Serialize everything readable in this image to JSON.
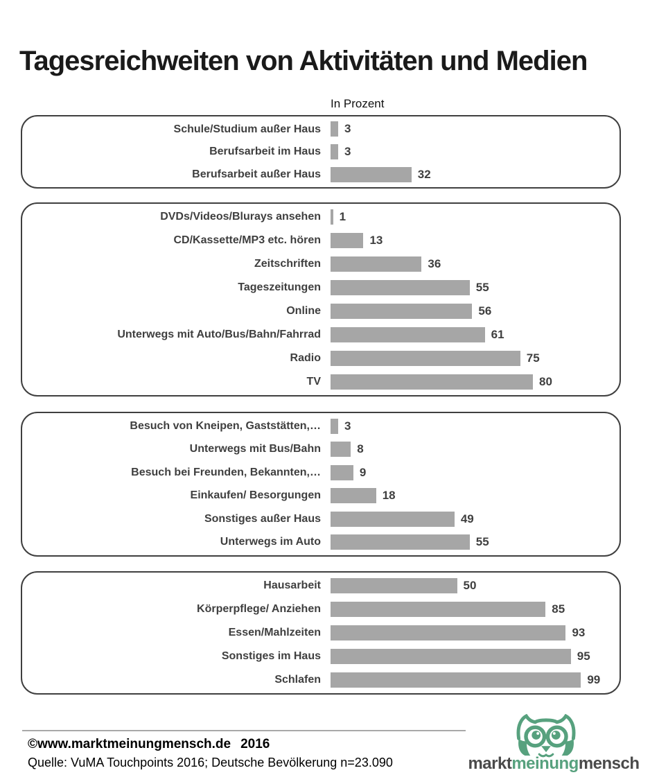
{
  "page": {
    "title": "Tagesreichweiten von Aktivitäten und Medien",
    "unit_label": "In Prozent"
  },
  "chart_data": {
    "type": "bar",
    "orientation": "horizontal",
    "title": "Tagesreichweiten von Aktivitäten und Medien",
    "value_unit": "Prozent",
    "xlim": [
      0,
      100
    ],
    "grid": false,
    "legend": false,
    "bar_color": "#A6A6A6",
    "groups": [
      {
        "items": [
          {
            "label": "Schule/Studium außer Haus",
            "value": 3
          },
          {
            "label": "Berufsarbeit im Haus",
            "value": 3
          },
          {
            "label": "Berufsarbeit außer Haus",
            "value": 32
          }
        ]
      },
      {
        "items": [
          {
            "label": "DVDs/Videos/Blurays ansehen",
            "value": 1
          },
          {
            "label": "CD/Kassette/MP3 etc. hören",
            "value": 13
          },
          {
            "label": "Zeitschriften",
            "value": 36
          },
          {
            "label": "Tageszeitungen",
            "value": 55
          },
          {
            "label": "Online",
            "value": 56
          },
          {
            "label": "Unterwegs mit Auto/Bus/Bahn/Fahrrad",
            "value": 61
          },
          {
            "label": "Radio",
            "value": 75
          },
          {
            "label": "TV",
            "value": 80
          }
        ]
      },
      {
        "items": [
          {
            "label": "Besuch von Kneipen, Gaststätten,…",
            "value": 3
          },
          {
            "label": "Unterwegs mit Bus/Bahn",
            "value": 8
          },
          {
            "label": "Besuch bei Freunden, Bekannten,…",
            "value": 9
          },
          {
            "label": "Einkaufen/ Besorgungen",
            "value": 18
          },
          {
            "label": "Sonstiges außer Haus",
            "value": 49
          },
          {
            "label": "Unterwegs im Auto",
            "value": 55
          }
        ]
      },
      {
        "items": [
          {
            "label": "Hausarbeit",
            "value": 50
          },
          {
            "label": "Körperpflege/ Anziehen",
            "value": 85
          },
          {
            "label": "Essen/Mahlzeiten",
            "value": 93
          },
          {
            "label": "Sonstiges im Haus",
            "value": 95
          },
          {
            "label": "Schlafen",
            "value": 99
          }
        ]
      }
    ]
  },
  "footer": {
    "copyright": "©www.marktmeinungmensch.de",
    "year": "2016",
    "source": "Quelle: VuMA Touchpoints 2016; Deutsche Bevölkerung n=23.090",
    "logo": {
      "markt": "markt",
      "meinung": "meinung",
      "mensch": "mensch"
    }
  },
  "colors": {
    "bar": "#A6A6A6",
    "box_border": "#3F3F3F",
    "label_text": "#3F3F3F",
    "logo_green": "#57A17E",
    "logo_dark": "#4A4A4A",
    "footer_line": "#A8A8A8",
    "title_text": "#1A1A1A"
  }
}
